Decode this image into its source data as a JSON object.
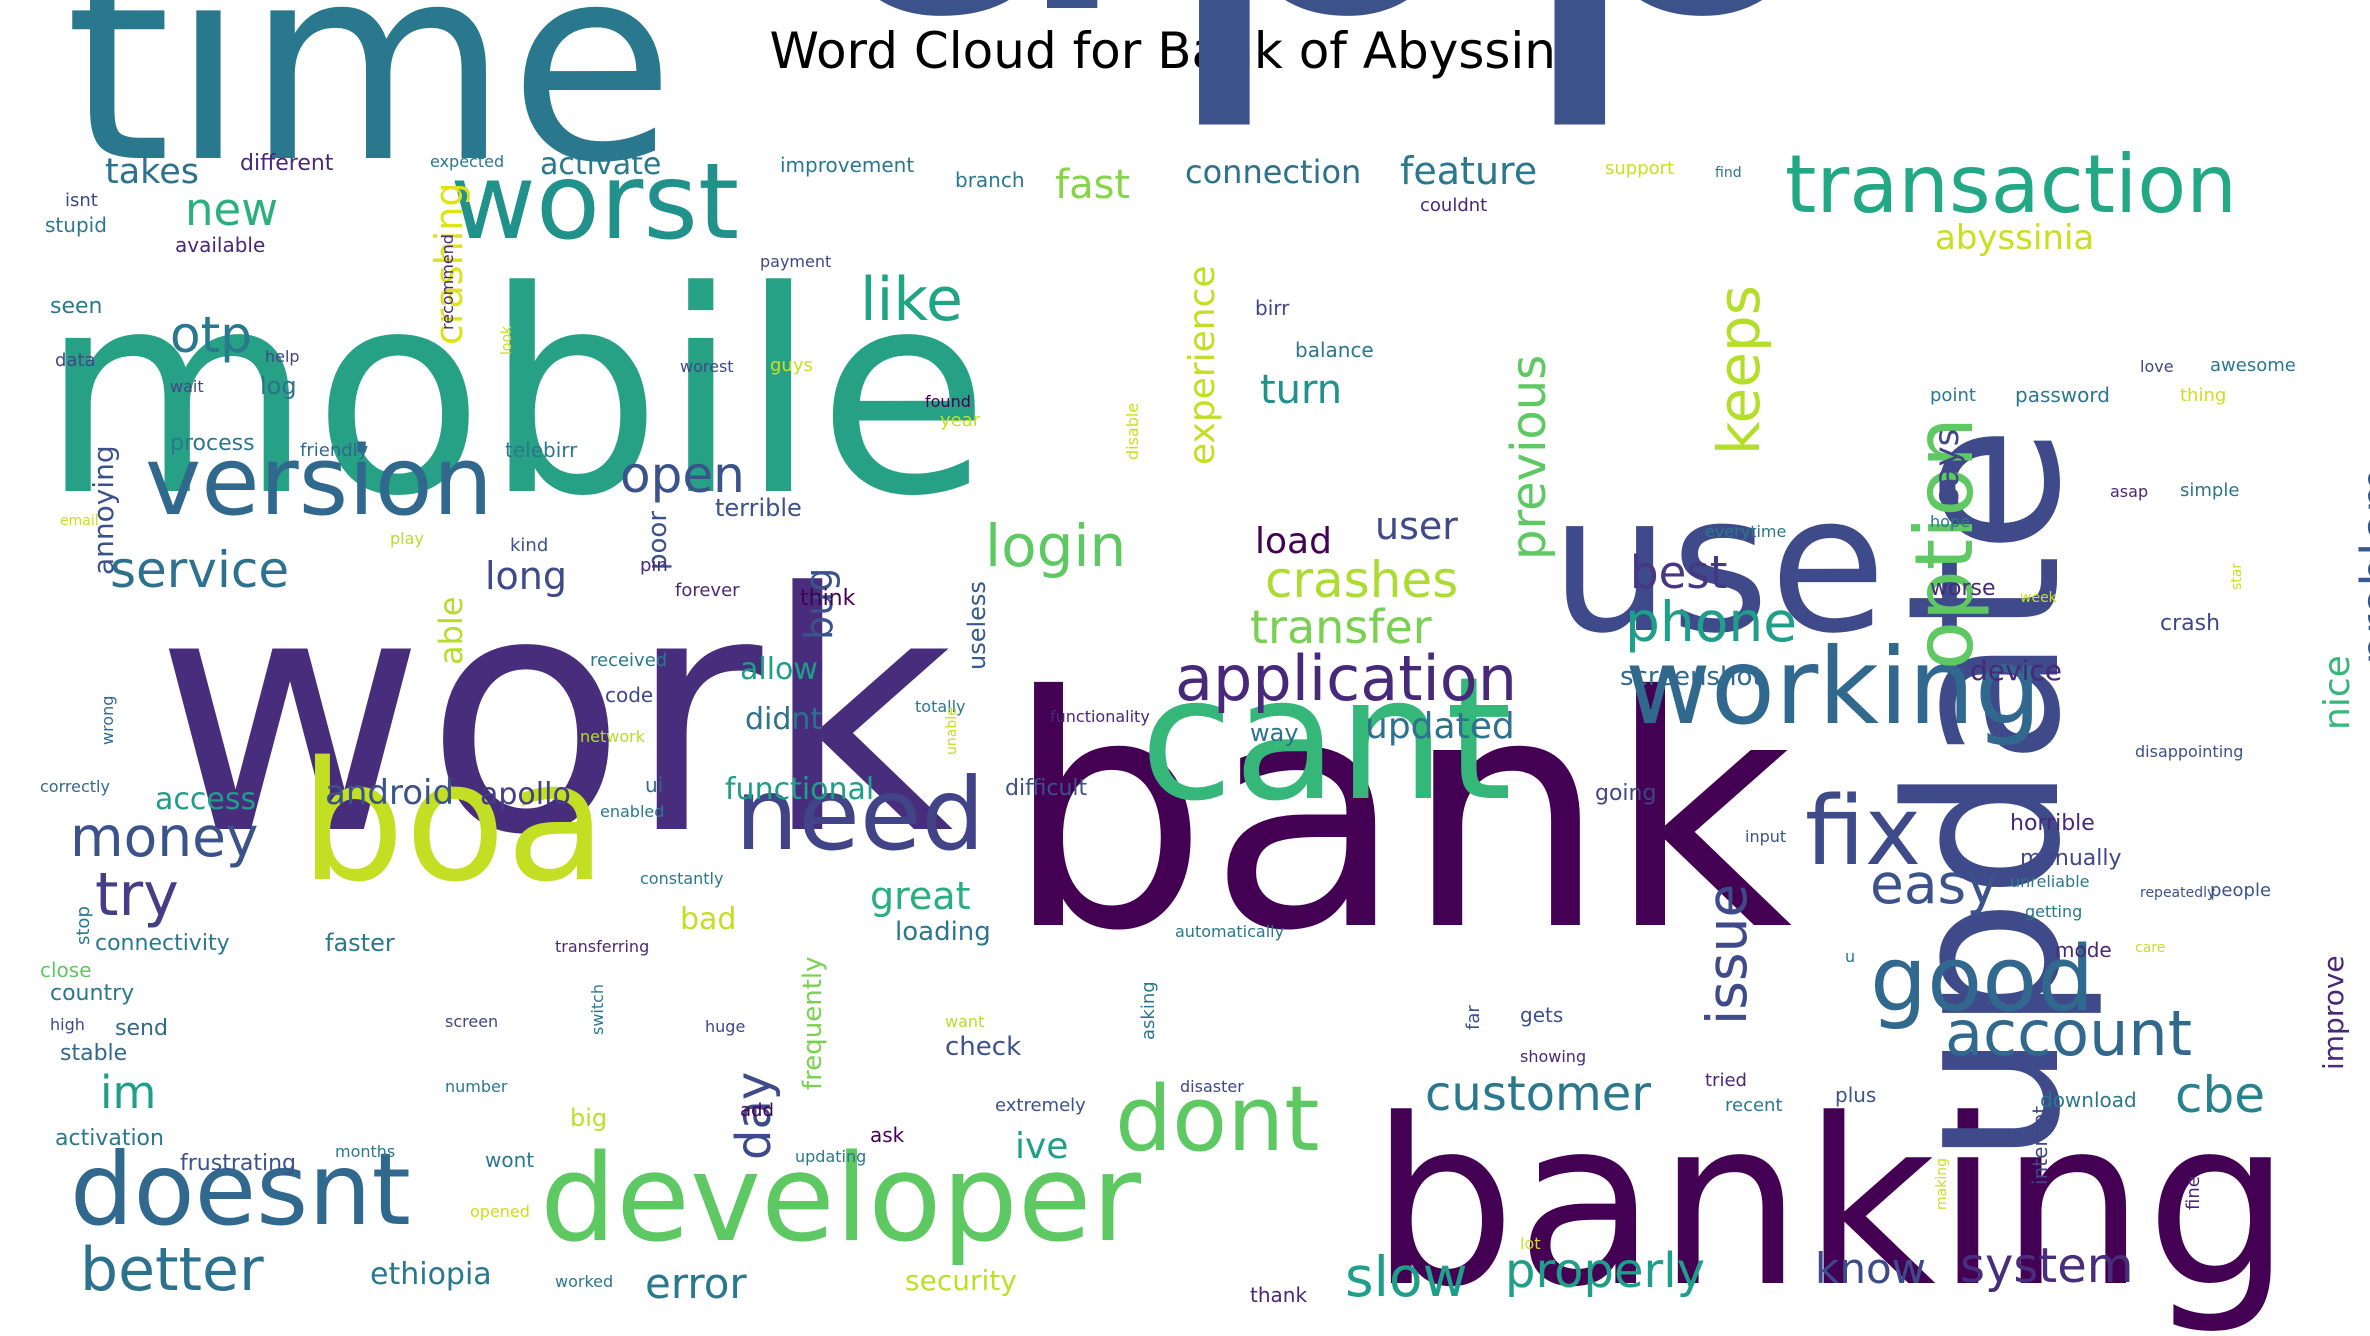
{
  "title": "Word Cloud for Bank of Abyssinia",
  "words": [
    {
      "t": "app",
      "c": "#3b528b"
    },
    {
      "t": "mobile",
      "c": "#26a185"
    },
    {
      "t": "time",
      "c": "#2a788e"
    },
    {
      "t": "work",
      "c": "#472d7b"
    },
    {
      "t": "bank",
      "c": "#440154"
    },
    {
      "t": "banking",
      "c": "#440154"
    },
    {
      "t": "update",
      "c": "#3e4a89"
    },
    {
      "t": "use",
      "c": "#3e4a89"
    },
    {
      "t": "cant",
      "c": "#35b779"
    },
    {
      "t": "boa",
      "c": "#c2df23"
    },
    {
      "t": "developer",
      "c": "#5ec962"
    },
    {
      "t": "worst",
      "c": "#21918c"
    },
    {
      "t": "version",
      "c": "#31688e"
    },
    {
      "t": "transaction",
      "c": "#22a884"
    },
    {
      "t": "working",
      "c": "#31688e"
    },
    {
      "t": "need",
      "c": "#414487"
    },
    {
      "t": "doesnt",
      "c": "#31688e"
    },
    {
      "t": "fix",
      "c": "#3e4a89"
    },
    {
      "t": "good",
      "c": "#31688e"
    },
    {
      "t": "dont",
      "c": "#5ec962"
    },
    {
      "t": "option",
      "c": "#5ec962"
    },
    {
      "t": "application",
      "c": "#482878"
    },
    {
      "t": "account",
      "c": "#31688e"
    },
    {
      "t": "better",
      "c": "#2c728e"
    },
    {
      "t": "money",
      "c": "#3b528b"
    },
    {
      "t": "customer",
      "c": "#2a788e"
    },
    {
      "t": "login",
      "c": "#5ec962"
    },
    {
      "t": "crashes",
      "c": "#addc30"
    },
    {
      "t": "transfer",
      "c": "#7ad151"
    },
    {
      "t": "phone",
      "c": "#1f9e89"
    },
    {
      "t": "system",
      "c": "#472d7b"
    },
    {
      "t": "easy",
      "c": "#3b528b"
    },
    {
      "t": "issue",
      "c": "#3e4a89"
    },
    {
      "t": "previous",
      "c": "#5ec962"
    },
    {
      "t": "keeps",
      "c": "#b5de2b"
    },
    {
      "t": "slow",
      "c": "#1f9e89"
    },
    {
      "t": "properly",
      "c": "#1f9e89"
    },
    {
      "t": "cbe",
      "c": "#26828e"
    },
    {
      "t": "try",
      "c": "#433e85"
    },
    {
      "t": "im",
      "c": "#1f9e89"
    },
    {
      "t": "like",
      "c": "#20a486"
    },
    {
      "t": "otp",
      "c": "#2a788e"
    },
    {
      "t": "new",
      "c": "#2ab07f"
    },
    {
      "t": "service",
      "c": "#2c728e"
    },
    {
      "t": "open",
      "c": "#3b528b"
    },
    {
      "t": "problem",
      "c": "#38598c"
    },
    {
      "t": "experience",
      "c": "#c2df23"
    },
    {
      "t": "crashing",
      "c": "#dde318"
    },
    {
      "t": "day",
      "c": "#3e4a89"
    },
    {
      "t": "know",
      "c": "#3e4a89"
    },
    {
      "t": "error",
      "c": "#2a788e"
    },
    {
      "t": "best",
      "c": "#453781"
    },
    {
      "t": "feature",
      "c": "#2a788e"
    },
    {
      "t": "fast",
      "c": "#86d549"
    },
    {
      "t": "takes",
      "c": "#2c728e"
    },
    {
      "t": "nice",
      "c": "#35b779"
    },
    {
      "t": "improve",
      "c": "#482878"
    },
    {
      "t": "ive",
      "c": "#1f9e89"
    },
    {
      "t": "turn",
      "c": "#21918c"
    },
    {
      "t": "great",
      "c": "#29af7f"
    },
    {
      "t": "bug",
      "c": "#3b528b"
    },
    {
      "t": "abyssinia",
      "c": "#c8e020"
    },
    {
      "t": "updated",
      "c": "#2c728e"
    },
    {
      "t": "user",
      "c": "#3e4a89"
    },
    {
      "t": "says",
      "c": "#404688"
    },
    {
      "t": "long",
      "c": "#3e4a89"
    },
    {
      "t": "load",
      "c": "#440154"
    },
    {
      "t": "connection",
      "c": "#2c728e"
    },
    {
      "t": "activate",
      "c": "#2a788e"
    },
    {
      "t": "android",
      "c": "#3b528b"
    },
    {
      "t": "apollo",
      "c": "#433e85"
    },
    {
      "t": "ethiopia",
      "c": "#2a788e"
    },
    {
      "t": "security",
      "c": "#bddf26"
    },
    {
      "t": "allow",
      "c": "#1f9e89"
    },
    {
      "t": "didnt",
      "c": "#2c728e"
    },
    {
      "t": "functional",
      "c": "#1f9e89"
    },
    {
      "t": "access",
      "c": "#1f9e89"
    },
    {
      "t": "frequently",
      "c": "#7ad151"
    },
    {
      "t": "annoying",
      "c": "#3b528b"
    },
    {
      "t": "able",
      "c": "#b5de2b"
    },
    {
      "t": "screenshot",
      "c": "#31688e"
    },
    {
      "t": "device",
      "c": "#482878"
    },
    {
      "t": "bad",
      "c": "#c2df23"
    },
    {
      "t": "loading",
      "c": "#2a788e"
    },
    {
      "t": "faster",
      "c": "#2a788e"
    },
    {
      "t": "connectivity",
      "c": "#2a788e"
    },
    {
      "t": "country",
      "c": "#2a788e"
    },
    {
      "t": "send",
      "c": "#31688e"
    },
    {
      "t": "stable",
      "c": "#31688e"
    },
    {
      "t": "check",
      "c": "#3b528b"
    },
    {
      "t": "activation",
      "c": "#2a788e"
    },
    {
      "t": "frustrating",
      "c": "#3b528b"
    },
    {
      "t": "big",
      "c": "#bddf26"
    },
    {
      "t": "useless",
      "c": "#38598c"
    },
    {
      "t": "poor",
      "c": "#3b528b"
    },
    {
      "t": "terrible",
      "c": "#3b528b"
    },
    {
      "t": "way",
      "c": "#2c728e"
    },
    {
      "t": "manually",
      "c": "#404688"
    },
    {
      "t": "horrible",
      "c": "#482878"
    },
    {
      "t": "log",
      "c": "#2c728e"
    },
    {
      "t": "process",
      "c": "#2a788e"
    },
    {
      "t": "different",
      "c": "#482878"
    },
    {
      "t": "stupid",
      "c": "#2a788e"
    },
    {
      "t": "isnt",
      "c": "#404688"
    },
    {
      "t": "available",
      "c": "#482878"
    },
    {
      "t": "seen",
      "c": "#2a788e"
    },
    {
      "t": "data",
      "c": "#404688"
    },
    {
      "t": "wait",
      "c": "#404688"
    },
    {
      "t": "recommend",
      "c": "#482878"
    },
    {
      "t": "help",
      "c": "#404688"
    },
    {
      "t": "friendly",
      "c": "#31688e"
    },
    {
      "t": "telebirr",
      "c": "#2a788e"
    },
    {
      "t": "kind",
      "c": "#3b528b"
    },
    {
      "t": "pin",
      "c": "#482878"
    },
    {
      "t": "think",
      "c": "#440154"
    },
    {
      "t": "forever",
      "c": "#482878"
    },
    {
      "t": "received",
      "c": "#2a788e"
    },
    {
      "t": "code",
      "c": "#404688"
    },
    {
      "t": "network",
      "c": "#b5de2b"
    },
    {
      "t": "ui",
      "c": "#31688e"
    },
    {
      "t": "difficult",
      "c": "#3b528b"
    },
    {
      "t": "correctly",
      "c": "#31688e"
    },
    {
      "t": "wrong",
      "c": "#31688e"
    },
    {
      "t": "email",
      "c": "#c8e020"
    },
    {
      "t": "play",
      "c": "#b5de2b"
    },
    {
      "t": "enabled",
      "c": "#2a788e"
    },
    {
      "t": "constantly",
      "c": "#2a788e"
    },
    {
      "t": "close",
      "c": "#5ec962"
    },
    {
      "t": "stop",
      "c": "#2a788e"
    },
    {
      "t": "high",
      "c": "#404688"
    },
    {
      "t": "transferring",
      "c": "#482878"
    },
    {
      "t": "switch",
      "c": "#2a788e"
    },
    {
      "t": "huge",
      "c": "#404688"
    },
    {
      "t": "want",
      "c": "#b5de2b"
    },
    {
      "t": "screen",
      "c": "#404688"
    },
    {
      "t": "number",
      "c": "#2a788e"
    },
    {
      "t": "add",
      "c": "#440154"
    },
    {
      "t": "months",
      "c": "#2a788e"
    },
    {
      "t": "wont",
      "c": "#2a788e"
    },
    {
      "t": "opened",
      "c": "#c8e020"
    },
    {
      "t": "updating",
      "c": "#2a788e"
    },
    {
      "t": "worked",
      "c": "#2a788e"
    },
    {
      "t": "lot",
      "c": "#c8e020"
    },
    {
      "t": "thank",
      "c": "#482878"
    },
    {
      "t": "ask",
      "c": "#440154"
    },
    {
      "t": "extremely",
      "c": "#3b528b"
    },
    {
      "t": "disaster",
      "c": "#404688"
    },
    {
      "t": "tried",
      "c": "#482878"
    },
    {
      "t": "recent",
      "c": "#2a788e"
    },
    {
      "t": "plus",
      "c": "#3b528b"
    },
    {
      "t": "download",
      "c": "#2a788e"
    },
    {
      "t": "internet",
      "c": "#404688"
    },
    {
      "t": "making",
      "c": "#c8e020"
    },
    {
      "t": "fine",
      "c": "#482878"
    },
    {
      "t": "showing",
      "c": "#482878"
    },
    {
      "t": "gets",
      "c": "#3b528b"
    },
    {
      "t": "far",
      "c": "#3b528b"
    },
    {
      "t": "asking",
      "c": "#2a788e"
    },
    {
      "t": "automatically",
      "c": "#2a788e"
    },
    {
      "t": "u",
      "c": "#2a788e"
    },
    {
      "t": "mode",
      "c": "#482878"
    },
    {
      "t": "care",
      "c": "#c8e020"
    },
    {
      "t": "getting",
      "c": "#2a788e"
    },
    {
      "t": "unreliable",
      "c": "#2a788e"
    },
    {
      "t": "repeatedly",
      "c": "#3b528b"
    },
    {
      "t": "people",
      "c": "#3b528b"
    },
    {
      "t": "input",
      "c": "#3b528b"
    },
    {
      "t": "going",
      "c": "#404688"
    },
    {
      "t": "functionality",
      "c": "#482878"
    },
    {
      "t": "totally",
      "c": "#2a788e"
    },
    {
      "t": "unable",
      "c": "#c8e020"
    },
    {
      "t": "disappointing",
      "c": "#3b528b"
    },
    {
      "t": "crash",
      "c": "#404688"
    },
    {
      "t": "worse",
      "c": "#482878"
    },
    {
      "t": "week",
      "c": "#c8e020"
    },
    {
      "t": "star",
      "c": "#c8e020"
    },
    {
      "t": "everytime",
      "c": "#2a788e"
    },
    {
      "t": "hope",
      "c": "#2a788e"
    },
    {
      "t": "asap",
      "c": "#482878"
    },
    {
      "t": "simple",
      "c": "#2a788e"
    },
    {
      "t": "love",
      "c": "#404688"
    },
    {
      "t": "awesome",
      "c": "#2a788e"
    },
    {
      "t": "thing",
      "c": "#c8e020"
    },
    {
      "t": "point",
      "c": "#2a788e"
    },
    {
      "t": "password",
      "c": "#2a788e"
    },
    {
      "t": "disable",
      "c": "#c8e020"
    },
    {
      "t": "found",
      "c": "#440154"
    },
    {
      "t": "year",
      "c": "#c8e020"
    },
    {
      "t": "balance",
      "c": "#2a788e"
    },
    {
      "t": "birr",
      "c": "#404688"
    },
    {
      "t": "worest",
      "c": "#404688"
    },
    {
      "t": "guys",
      "c": "#c8e020"
    },
    {
      "t": "look",
      "c": "#c8e020"
    },
    {
      "t": "payment",
      "c": "#404688"
    },
    {
      "t": "couldnt",
      "c": "#482878"
    },
    {
      "t": "branch",
      "c": "#2a788e"
    },
    {
      "t": "improvement",
      "c": "#2a788e"
    },
    {
      "t": "expected",
      "c": "#2a788e"
    },
    {
      "t": "support",
      "c": "#c8e020"
    },
    {
      "t": "find",
      "c": "#2a788e"
    }
  ]
}
